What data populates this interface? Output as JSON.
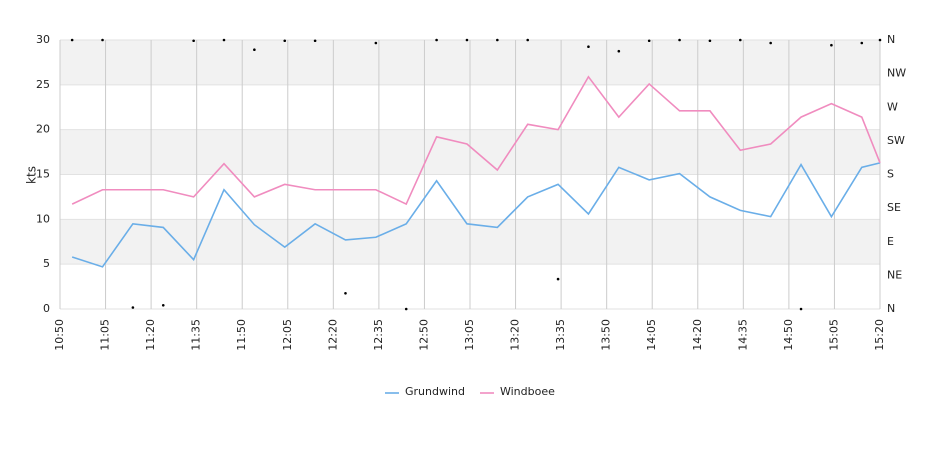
{
  "chart_data": {
    "type": "line",
    "ylabel": "kts",
    "x": [
      "10:54",
      "11:04",
      "11:14",
      "11:24",
      "11:34",
      "11:44",
      "11:54",
      "12:04",
      "12:14",
      "12:24",
      "12:34",
      "12:44",
      "12:54",
      "13:04",
      "13:14",
      "13:24",
      "13:34",
      "13:44",
      "13:54",
      "14:04",
      "14:14",
      "14:24",
      "14:34",
      "14:44",
      "14:54",
      "15:04",
      "15:14",
      "15:20"
    ],
    "series": [
      {
        "name": "Grundwind",
        "color": "#6aaee8",
        "values": [
          5.8,
          4.7,
          9.5,
          9.1,
          5.5,
          13.3,
          9.4,
          6.9,
          9.5,
          7.7,
          8.0,
          9.5,
          14.3,
          9.5,
          9.1,
          12.5,
          13.9,
          10.6,
          15.8,
          14.4,
          15.1,
          12.5,
          11.0,
          10.3,
          16.1,
          10.3,
          15.8,
          16.3
        ]
      },
      {
        "name": "Windboee",
        "color": "#f08cbf",
        "values": [
          11.7,
          13.3,
          13.3,
          13.3,
          12.5,
          16.2,
          12.5,
          13.9,
          13.3,
          13.3,
          13.3,
          11.7,
          19.2,
          18.4,
          15.5,
          20.6,
          20.0,
          25.9,
          21.4,
          25.1,
          22.1,
          22.1,
          17.7,
          18.4,
          21.4,
          22.9,
          21.4,
          16.3
        ]
      },
      {
        "color": "#000000",
        "axis": "y2",
        "values": [
          360,
          360,
          2,
          5,
          359,
          360,
          347,
          359,
          359,
          21,
          356,
          0,
          360,
          360,
          360,
          360,
          40,
          351,
          345,
          359,
          360,
          359,
          360,
          356,
          0,
          353,
          356,
          360
        ]
      }
    ],
    "xlim": [
      "10:50",
      "15:20"
    ],
    "xticks": [
      "10:50",
      "11:05",
      "11:20",
      "11:35",
      "11:50",
      "12:05",
      "12:20",
      "12:35",
      "12:50",
      "13:05",
      "13:20",
      "13:35",
      "13:50",
      "14:05",
      "14:20",
      "14:35",
      "14:50",
      "15:05",
      "15:20"
    ],
    "ylim": [
      0,
      30
    ],
    "yticks": [
      0,
      5,
      10,
      15,
      20,
      25,
      30
    ],
    "y2lim": [
      0,
      360
    ],
    "y2ticks": [
      {
        "value": 0,
        "label": "N"
      },
      {
        "value": 45,
        "label": "NE"
      },
      {
        "value": 90,
        "label": "E"
      },
      {
        "value": 135,
        "label": "SE"
      },
      {
        "value": 180,
        "label": "S"
      },
      {
        "value": 225,
        "label": "SW"
      },
      {
        "value": 270,
        "label": "W"
      },
      {
        "value": 315,
        "label": "NW"
      },
      {
        "value": 360,
        "label": "N"
      }
    ],
    "grid": true,
    "legend": "bottom"
  }
}
